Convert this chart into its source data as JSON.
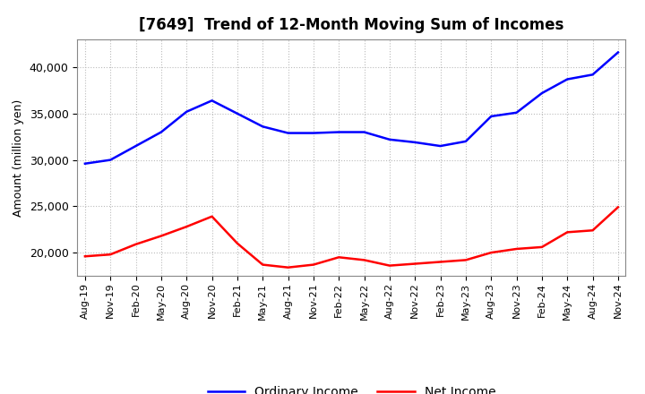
{
  "title": "[7649]  Trend of 12-Month Moving Sum of Incomes",
  "ylabel": "Amount (million yen)",
  "x_labels": [
    "Aug-19",
    "Nov-19",
    "Feb-20",
    "May-20",
    "Aug-20",
    "Nov-20",
    "Feb-21",
    "May-21",
    "Aug-21",
    "Nov-21",
    "Feb-22",
    "May-22",
    "Aug-22",
    "Nov-22",
    "Feb-23",
    "May-23",
    "Aug-23",
    "Nov-23",
    "Feb-24",
    "May-24",
    "Aug-24",
    "Nov-24"
  ],
  "ordinary_income": [
    29600,
    30000,
    31500,
    33000,
    35200,
    36400,
    35000,
    33600,
    32900,
    32900,
    33000,
    33000,
    32200,
    31900,
    31500,
    32000,
    34700,
    35100,
    37200,
    38700,
    39200,
    41600
  ],
  "net_income": [
    19600,
    19800,
    20900,
    21800,
    22800,
    23900,
    21000,
    18700,
    18400,
    18700,
    19500,
    19200,
    18600,
    18800,
    19000,
    19200,
    20000,
    20400,
    20600,
    22200,
    22400,
    24900
  ],
  "ordinary_color": "#0000FF",
  "net_color": "#FF0000",
  "ylim_min": 17500,
  "ylim_max": 43000,
  "yticks": [
    20000,
    25000,
    30000,
    35000,
    40000
  ],
  "background_color": "#FFFFFF",
  "grid_color": "#BBBBBB",
  "title_fontsize": 12,
  "legend_fontsize": 10,
  "tick_fontsize": 8,
  "ylabel_fontsize": 9
}
